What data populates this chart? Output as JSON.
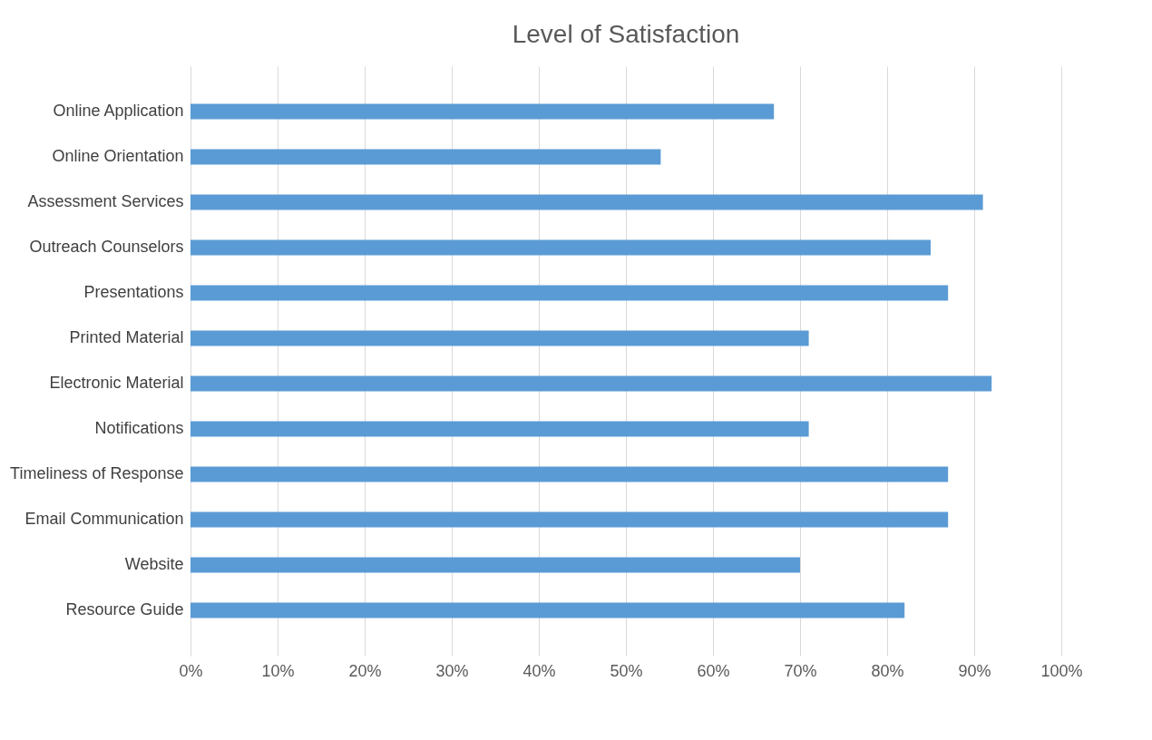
{
  "chart_data": {
    "type": "bar",
    "orientation": "horizontal",
    "title": "Level of Satisfaction",
    "categories": [
      "Online Application",
      "Online Orientation",
      "Assessment Services",
      "Outreach Counselors",
      "Presentations",
      "Printed Material",
      "Electronic Material",
      "Notifications",
      "Timeliness of Response",
      "Email Communication",
      "Website",
      "Resource Guide"
    ],
    "values": [
      67,
      54,
      91,
      85,
      87,
      71,
      92,
      71,
      87,
      87,
      70,
      82
    ],
    "color": "#5b9bd5",
    "xlim": [
      0,
      100
    ],
    "xticks": [
      {
        "value": 0,
        "label": "0%"
      },
      {
        "value": 10,
        "label": "10%"
      },
      {
        "value": 20,
        "label": "20%"
      },
      {
        "value": 30,
        "label": "30%"
      },
      {
        "value": 40,
        "label": "40%"
      },
      {
        "value": 50,
        "label": "50%"
      },
      {
        "value": 60,
        "label": "60%"
      },
      {
        "value": 70,
        "label": "70%"
      },
      {
        "value": 80,
        "label": "80%"
      },
      {
        "value": 90,
        "label": "90%"
      },
      {
        "value": 100,
        "label": "100%"
      }
    ],
    "grid": "x"
  }
}
